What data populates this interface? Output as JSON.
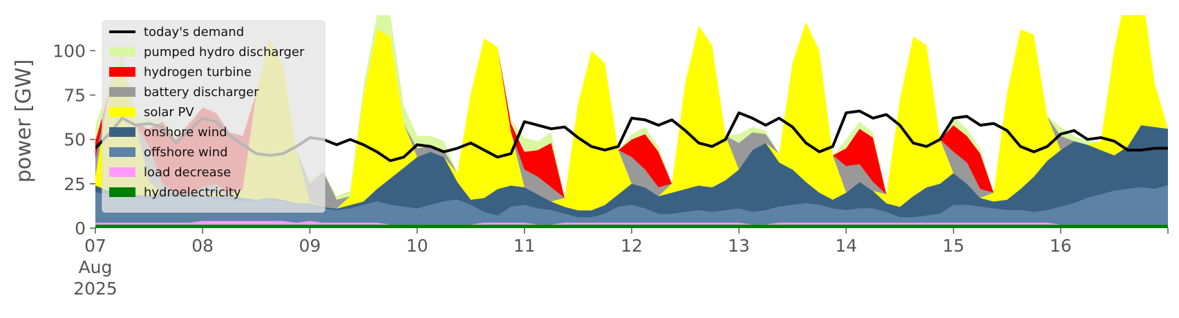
{
  "chart_data": {
    "type": "area",
    "title": "",
    "xlabel": "",
    "ylabel": "power [GW]",
    "ylim": [
      0,
      120
    ],
    "yticks": [
      0,
      25,
      50,
      75,
      100
    ],
    "x_start": "2025-08-07 00:00",
    "x_end": "2025-08-17 00:00",
    "x_step_hours": 3,
    "xtick_labels": [
      {
        "day": 7,
        "label": "07",
        "sub": [
          "Aug",
          "2025"
        ]
      },
      {
        "day": 8,
        "label": "08",
        "sub": []
      },
      {
        "day": 9,
        "label": "09",
        "sub": []
      },
      {
        "day": 10,
        "label": "10",
        "sub": []
      },
      {
        "day": 11,
        "label": "11",
        "sub": []
      },
      {
        "day": 12,
        "label": "12",
        "sub": []
      },
      {
        "day": 13,
        "label": "13",
        "sub": []
      },
      {
        "day": 14,
        "label": "14",
        "sub": []
      },
      {
        "day": 15,
        "label": "15",
        "sub": []
      },
      {
        "day": 16,
        "label": "16",
        "sub": []
      }
    ],
    "grid": false,
    "background_color": "#ffffff",
    "legend_position": "top-left",
    "legend": [
      {
        "name": "today's demand",
        "color": "#000000",
        "kind": "line"
      },
      {
        "name": "pumped hydro discharger",
        "color": "#d9f7a0",
        "kind": "area"
      },
      {
        "name": "hydrogen turbine",
        "color": "#ff0000",
        "kind": "area"
      },
      {
        "name": "battery discharger",
        "color": "#999999",
        "kind": "area"
      },
      {
        "name": "solar PV",
        "color": "#ffff00",
        "kind": "area"
      },
      {
        "name": "onshore wind",
        "color": "#3b6182",
        "kind": "area"
      },
      {
        "name": "offshore wind",
        "color": "#5d82a6",
        "kind": "area"
      },
      {
        "name": "load decrease",
        "color": "#ff99ff",
        "kind": "area"
      },
      {
        "name": "hydroelectricity",
        "color": "#008000",
        "kind": "area"
      }
    ],
    "stack_order": [
      "hydroelectricity",
      "load decrease",
      "offshore wind",
      "onshore wind",
      "solar PV",
      "battery discharger",
      "hydrogen turbine",
      "pumped hydro discharger"
    ],
    "series": [
      {
        "name": "hydroelectricity",
        "values": [
          2,
          2,
          2,
          2,
          2,
          2,
          2,
          2,
          2,
          2,
          2,
          2,
          2,
          2,
          2,
          2,
          2,
          2,
          2,
          2,
          2,
          2,
          2,
          2,
          2,
          2,
          2,
          2,
          2,
          2,
          2,
          2,
          2,
          2,
          2,
          2,
          2,
          2,
          2,
          2,
          2,
          2,
          2,
          2,
          2,
          2,
          2,
          2,
          2,
          2,
          2,
          2,
          2,
          2,
          2,
          2,
          2,
          2,
          2,
          2,
          2,
          2,
          2,
          2,
          2,
          2,
          2,
          2,
          2,
          2,
          2,
          2,
          2,
          2,
          2,
          2,
          2,
          2,
          2,
          2,
          2
        ]
      },
      {
        "name": "load decrease",
        "values": [
          1,
          1,
          1,
          1,
          1,
          1,
          1,
          1,
          2,
          2,
          2,
          2,
          2,
          2,
          2,
          1,
          2,
          1,
          1,
          1,
          1,
          1,
          0,
          0,
          0,
          0,
          0,
          0,
          0,
          1,
          1,
          1,
          1,
          0,
          0,
          1,
          1,
          1,
          1,
          1,
          1,
          1,
          1,
          1,
          1,
          1,
          1,
          1,
          1,
          0,
          0,
          1,
          1,
          1,
          1,
          1,
          1,
          1,
          1,
          1,
          1,
          1,
          1,
          1,
          1,
          1,
          1,
          1,
          1,
          1,
          1,
          1,
          0,
          0,
          0,
          0,
          0,
          0,
          0,
          0,
          0
        ]
      },
      {
        "name": "offshore wind",
        "values": [
          17,
          16,
          15,
          14,
          13,
          14,
          15,
          14,
          13,
          12,
          12,
          11,
          11,
          12,
          11,
          10,
          9,
          8,
          7,
          8,
          10,
          12,
          11,
          10,
          9,
          11,
          13,
          14,
          11,
          6,
          4,
          9,
          10,
          9,
          8,
          5,
          3,
          3,
          5,
          9,
          10,
          8,
          5,
          5,
          6,
          7,
          6,
          7,
          8,
          7,
          8,
          9,
          10,
          11,
          10,
          8,
          7,
          8,
          8,
          6,
          3,
          3,
          4,
          5,
          10,
          10,
          9,
          8,
          7,
          7,
          6,
          7,
          10,
          12,
          15,
          17,
          19,
          20,
          21,
          20,
          22
        ]
      },
      {
        "name": "onshore wind",
        "values": [
          4,
          2,
          2,
          2,
          2,
          3,
          2,
          2,
          1,
          2,
          3,
          2,
          1,
          1,
          1,
          1,
          1,
          1,
          1,
          2,
          2,
          7,
          15,
          22,
          29,
          30,
          25,
          10,
          3,
          8,
          15,
          12,
          10,
          8,
          5,
          4,
          4,
          4,
          5,
          7,
          12,
          12,
          10,
          12,
          13,
          14,
          14,
          17,
          22,
          35,
          38,
          25,
          20,
          12,
          7,
          5,
          10,
          15,
          10,
          5,
          6,
          12,
          16,
          17,
          18,
          12,
          5,
          4,
          6,
          12,
          20,
          28,
          32,
          35,
          30,
          25,
          20,
          24,
          35,
          35,
          32
        ]
      },
      {
        "name": "solar PV",
        "values": [
          5,
          55,
          75,
          40,
          8,
          0,
          0,
          0,
          0,
          2,
          0,
          5,
          60,
          90,
          75,
          30,
          1,
          0,
          0,
          5,
          60,
          90,
          80,
          25,
          0,
          0,
          0,
          5,
          60,
          90,
          80,
          30,
          0,
          0,
          0,
          5,
          60,
          90,
          80,
          25,
          0,
          0,
          0,
          5,
          60,
          90,
          80,
          25,
          0,
          0,
          0,
          5,
          60,
          90,
          80,
          25,
          0,
          0,
          0,
          5,
          60,
          90,
          80,
          25,
          0,
          0,
          0,
          5,
          60,
          90,
          80,
          25,
          0,
          0,
          0,
          5,
          60,
          90,
          80,
          25,
          0
        ]
      },
      {
        "name": "battery discharger",
        "values": [
          10,
          0,
          0,
          0,
          20,
          5,
          0,
          0,
          5,
          5,
          0,
          0,
          0,
          0,
          0,
          0,
          10,
          20,
          5,
          0,
          0,
          0,
          0,
          0,
          5,
          3,
          4,
          0,
          0,
          0,
          0,
          0,
          10,
          10,
          8,
          0,
          0,
          0,
          0,
          0,
          15,
          10,
          5,
          0,
          0,
          0,
          0,
          0,
          15,
          10,
          5,
          0,
          0,
          0,
          0,
          0,
          15,
          10,
          5,
          0,
          0,
          0,
          0,
          0,
          12,
          12,
          5,
          0,
          0,
          0,
          0,
          0,
          8,
          0,
          0,
          0,
          0,
          0,
          0,
          0,
          0
        ]
      },
      {
        "name": "hydrogen turbine",
        "values": [
          10,
          0,
          0,
          0,
          10,
          35,
          30,
          40,
          45,
          40,
          35,
          30,
          0,
          0,
          0,
          0,
          0,
          0,
          0,
          0,
          0,
          0,
          0,
          0,
          0,
          0,
          0,
          0,
          0,
          0,
          0,
          5,
          10,
          15,
          25,
          0,
          0,
          0,
          0,
          0,
          10,
          20,
          20,
          0,
          0,
          0,
          0,
          0,
          0,
          0,
          0,
          0,
          0,
          0,
          0,
          0,
          10,
          20,
          25,
          0,
          0,
          0,
          0,
          0,
          15,
          15,
          20,
          0,
          0,
          0,
          0,
          0,
          0,
          0,
          0,
          0,
          0,
          0,
          0,
          0,
          0
        ]
      },
      {
        "name": "pumped hydro discharger",
        "values": [
          8,
          5,
          3,
          5,
          5,
          3,
          2,
          1,
          0,
          0,
          0,
          0,
          0,
          0,
          0,
          0,
          2,
          0,
          2,
          3,
          5,
          8,
          12,
          10,
          7,
          6,
          5,
          0,
          0,
          0,
          0,
          2,
          8,
          5,
          6,
          0,
          0,
          0,
          0,
          0,
          3,
          4,
          3,
          0,
          0,
          0,
          0,
          0,
          5,
          3,
          2,
          0,
          0,
          0,
          0,
          0,
          5,
          4,
          3,
          0,
          0,
          0,
          0,
          0,
          5,
          4,
          3,
          0,
          0,
          0,
          0,
          0,
          5,
          3,
          2,
          0,
          0,
          0,
          0,
          0,
          0
        ]
      },
      {
        "name": "today's demand",
        "values": [
          45,
          53,
          62,
          58,
          59,
          57,
          48,
          55,
          62,
          60,
          52,
          47,
          42,
          41,
          42,
          46,
          51,
          50,
          47,
          50,
          47,
          43,
          38,
          40,
          47,
          46,
          43,
          45,
          48,
          44,
          40,
          42,
          60,
          58,
          56,
          57,
          51,
          46,
          44,
          46,
          62,
          61,
          58,
          61,
          55,
          48,
          46,
          50,
          65,
          62,
          58,
          62,
          57,
          48,
          43,
          46,
          65,
          66,
          62,
          64,
          58,
          48,
          46,
          50,
          62,
          63,
          58,
          59,
          55,
          46,
          43,
          46,
          53,
          55,
          50,
          51,
          49,
          44,
          44,
          45,
          45
        ]
      }
    ]
  }
}
